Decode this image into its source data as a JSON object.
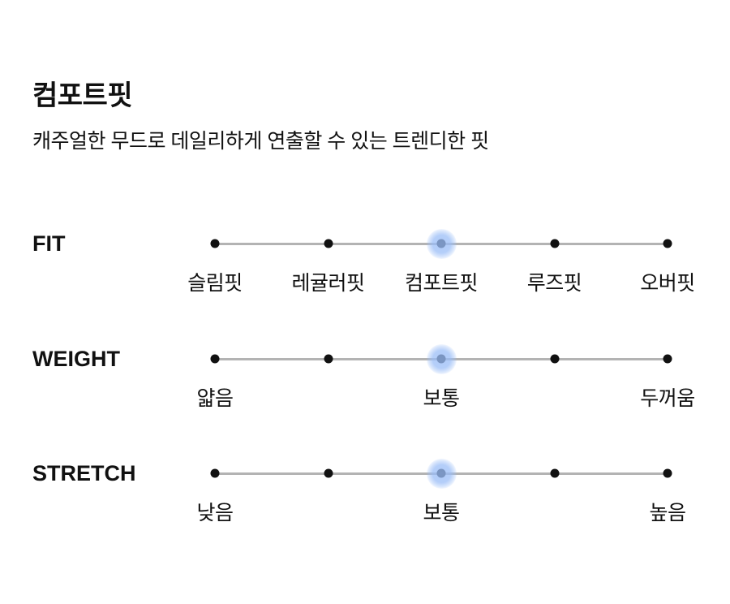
{
  "page": {
    "title": "컴포트핏",
    "subtitle": "캐주얼한 무드로 데일리하게 연출할 수 있는 트렌디한 핏"
  },
  "colors": {
    "track": "#b3b3b3",
    "dot": "#111111",
    "halo_rgb": "154, 189, 247",
    "text": "#111111"
  },
  "scales": [
    {
      "name": "FIT",
      "num_points": 5,
      "selected_index": 2,
      "selected_label": "컴포트핏",
      "labels": [
        "슬림핏",
        "레귤러핏",
        "컴포트핏",
        "루즈핏",
        "오버핏"
      ]
    },
    {
      "name": "WEIGHT",
      "num_points": 5,
      "selected_index": 2,
      "selected_label": "보통",
      "labels": [
        "얇음",
        "",
        "보통",
        "",
        "두꺼움"
      ]
    },
    {
      "name": "STRETCH",
      "num_points": 5,
      "selected_index": 2,
      "selected_label": "보통",
      "labels": [
        "낮음",
        "",
        "보통",
        "",
        "높음"
      ]
    }
  ]
}
